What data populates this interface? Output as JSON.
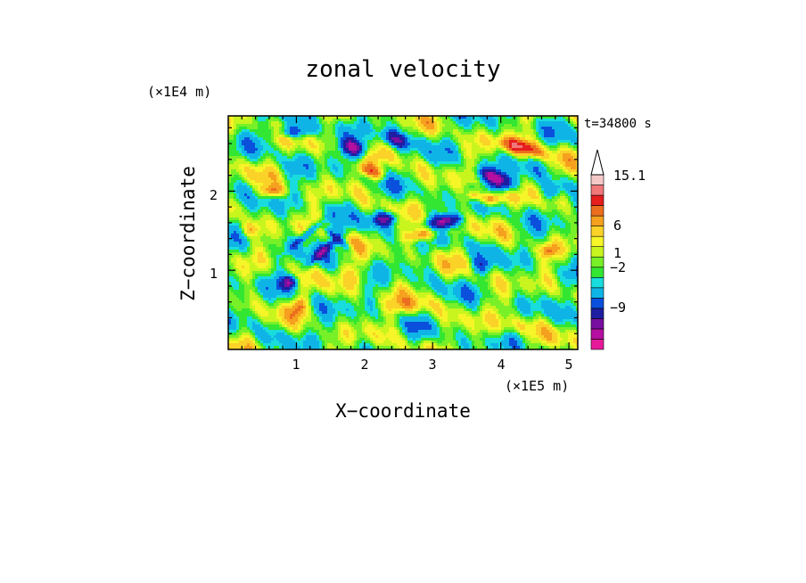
{
  "chart_data": {
    "type": "heatmap",
    "title": "zonal velocity",
    "xlabel": "X−coordinate",
    "ylabel": "Z−coordinate",
    "x_unit": "(×1E5 m)",
    "y_unit": "(×1E4 m)",
    "time_label": "t=34800 s",
    "xlim": [
      0,
      5.13
    ],
    "ylim": [
      0,
      2.95
    ],
    "x_ticks": [
      "1",
      "2",
      "3",
      "4",
      "5"
    ],
    "y_ticks": [
      "1",
      "2"
    ],
    "colorbar": {
      "labels": [
        "15.1",
        "6",
        "1",
        "−2",
        "−9"
      ],
      "levels_low_to_high": [
        {
          "color": "#e6199a"
        },
        {
          "color": "#b40fa0"
        },
        {
          "color": "#780fa0"
        },
        {
          "color": "#1e1ea0"
        },
        {
          "color": "#0a50dc"
        },
        {
          "color": "#0fb4e6"
        },
        {
          "color": "#19dcdc"
        },
        {
          "color": "#32e632"
        },
        {
          "color": "#78f028"
        },
        {
          "color": "#c8f51e"
        },
        {
          "color": "#f5f528"
        },
        {
          "color": "#fad228"
        },
        {
          "color": "#f5a01e"
        },
        {
          "color": "#eb6e1e"
        },
        {
          "color": "#e61e1e"
        },
        {
          "color": "#f07878"
        },
        {
          "color": "#f5c8c8"
        }
      ],
      "over_arrow_color": "#ffffff"
    }
  }
}
